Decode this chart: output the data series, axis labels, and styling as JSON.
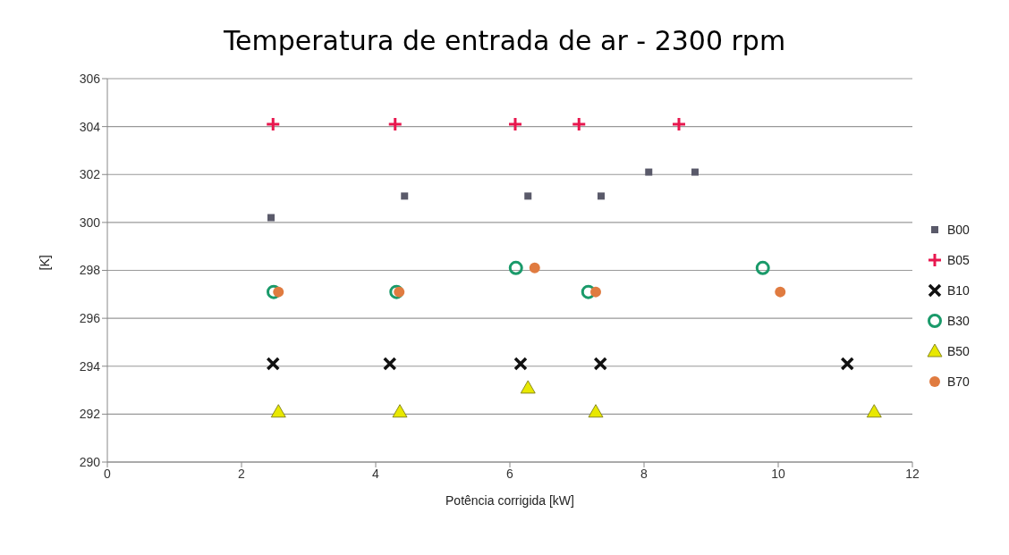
{
  "chart_data": {
    "type": "scatter",
    "title": "Temperatura de entrada de ar - 2300 rpm",
    "xlabel": "Potência corrigida [kW]",
    "ylabel": "[K]",
    "xlim": [
      0,
      12
    ],
    "xticks": [
      0,
      2,
      4,
      6,
      8,
      10,
      12
    ],
    "ylim": [
      290,
      306
    ],
    "yticks": [
      290,
      292,
      294,
      296,
      298,
      300,
      302,
      304,
      306
    ],
    "grid": "y",
    "legend": "right",
    "series": [
      {
        "name": "B00",
        "color": "#5a5a6a",
        "marker": "square",
        "x": [
          2.44,
          4.43,
          6.27,
          7.36,
          8.07,
          8.76
        ],
        "values": [
          300.2,
          301.1,
          301.1,
          301.1,
          302.1,
          302.1
        ]
      },
      {
        "name": "B05",
        "color": "#e8174e",
        "marker": "cross",
        "x": [
          2.47,
          4.29,
          6.08,
          7.03,
          8.52
        ],
        "values": [
          304.1,
          304.1,
          304.1,
          304.1,
          304.1
        ]
      },
      {
        "name": "B10",
        "color": "#111111",
        "marker": "cross",
        "x": [
          2.47,
          4.21,
          6.16,
          7.35,
          11.03
        ],
        "values": [
          294.1,
          294.1,
          294.1,
          294.1,
          294.1
        ]
      },
      {
        "name": "B30",
        "color": "#1a9a6a",
        "marker": "circle",
        "x": [
          2.48,
          4.31,
          6.09,
          7.17,
          9.77
        ],
        "values": [
          297.1,
          297.1,
          298.1,
          297.1,
          298.1
        ]
      },
      {
        "name": "B50",
        "color": "#e8e800",
        "marker": "triangle",
        "x": [
          2.55,
          4.36,
          6.27,
          7.28,
          11.43
        ],
        "values": [
          292.1,
          292.1,
          293.1,
          292.1,
          292.1
        ]
      },
      {
        "name": "B70",
        "color": "#e07b40",
        "marker": "circle",
        "x": [
          2.55,
          4.35,
          6.37,
          7.28,
          10.03
        ],
        "values": [
          297.1,
          297.1,
          298.1,
          297.1,
          297.1
        ]
      }
    ]
  }
}
